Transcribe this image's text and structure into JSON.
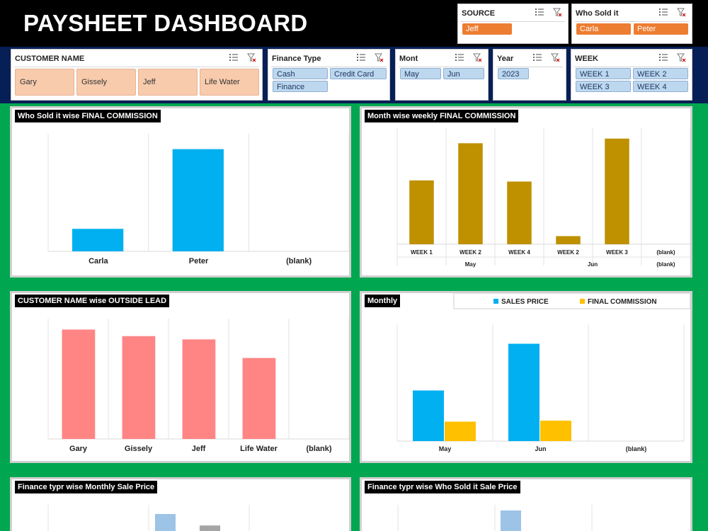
{
  "header": {
    "title": "PAYSHEET DASHBOARD"
  },
  "slicers": {
    "source": {
      "title": "SOURCE",
      "items": [
        "Jeff"
      ]
    },
    "who_sold_it": {
      "title": "Who Sold it",
      "items": [
        "Carla",
        "Peter"
      ]
    },
    "customer_name": {
      "title": "CUSTOMER NAME",
      "items": [
        "Gary",
        "Gissely",
        "Jeff",
        "Life Water"
      ]
    },
    "finance_type": {
      "title": "Finance Type",
      "items": [
        "Cash",
        "Credit Card",
        "Finance"
      ]
    },
    "month": {
      "title": "Mont",
      "items": [
        "May",
        "Jun"
      ]
    },
    "year": {
      "title": "Year",
      "items": [
        "2023"
      ]
    },
    "week": {
      "title": "WEEK",
      "items": [
        "WEEK 1",
        "WEEK 2",
        "WEEK 3",
        "WEEK 4"
      ]
    }
  },
  "panels": {
    "p1": {
      "title": "Who Sold it wise FINAL COMMISSION"
    },
    "p2": {
      "title": "Month wise weekly FINAL COMMISSION"
    },
    "p3": {
      "title": "CUSTOMER NAME wise OUTSIDE LEAD"
    },
    "p4": {
      "title": "Monthly"
    },
    "p5": {
      "title": "Finance typr wise Monthly Sale Price"
    },
    "p6": {
      "title": "Finance typr wise Who Sold it Sale Price"
    }
  },
  "colors": {
    "cyan": "#00b0f0",
    "gold": "#bf9000",
    "salmon": "#ff8585",
    "yellow": "#ffc000",
    "lightblue": "#9dc3e6",
    "gray": "#a5a5a5"
  },
  "chart_data": [
    {
      "type": "bar",
      "title": "Who Sold it wise FINAL COMMISSION",
      "categories": [
        "Carla",
        "Peter",
        "(blank)"
      ],
      "values": [
        22,
        100,
        null
      ],
      "ylim": [
        0,
        115
      ]
    },
    {
      "type": "bar",
      "title": "Month wise weekly FINAL COMMISSION",
      "categories": [
        "WEEK 1",
        "WEEK 2",
        "WEEK 4",
        "WEEK 2",
        "WEEK 3",
        "(blank)"
      ],
      "groups": [
        {
          "label": "May",
          "count": 3
        },
        {
          "label": "Jun",
          "count": 2
        },
        {
          "label": "(blank)",
          "count": 1
        }
      ],
      "values": [
        55,
        87,
        54,
        7,
        91,
        null
      ],
      "ylim": [
        0,
        100
      ]
    },
    {
      "type": "bar",
      "title": "CUSTOMER NAME wise OUTSIDE LEAD",
      "categories": [
        "Gary",
        "Gissely",
        "Jeff",
        "Life Water",
        "(blank)"
      ],
      "values": [
        100,
        94,
        91,
        74,
        null
      ],
      "ylim": [
        0,
        110
      ]
    },
    {
      "type": "bar",
      "title": "Monthly",
      "categories": [
        "May",
        "Jun",
        "(blank)"
      ],
      "series": [
        {
          "name": "SALES PRICE",
          "values": [
            52,
            100,
            null
          ]
        },
        {
          "name": "FINAL COMMISSION",
          "values": [
            20,
            21,
            null
          ]
        }
      ],
      "legend": "top-right",
      "ylim": [
        0,
        120
      ]
    },
    {
      "type": "bar",
      "title": "Finance typr wise Monthly Sale Price",
      "partial": true,
      "series": [
        {
          "name": "",
          "values": [
            100
          ]
        },
        {
          "name": "",
          "values": [
            40
          ]
        }
      ]
    },
    {
      "type": "bar",
      "title": "Finance typr wise Who Sold it Sale Price",
      "partial": true,
      "values": [
        100
      ]
    }
  ]
}
